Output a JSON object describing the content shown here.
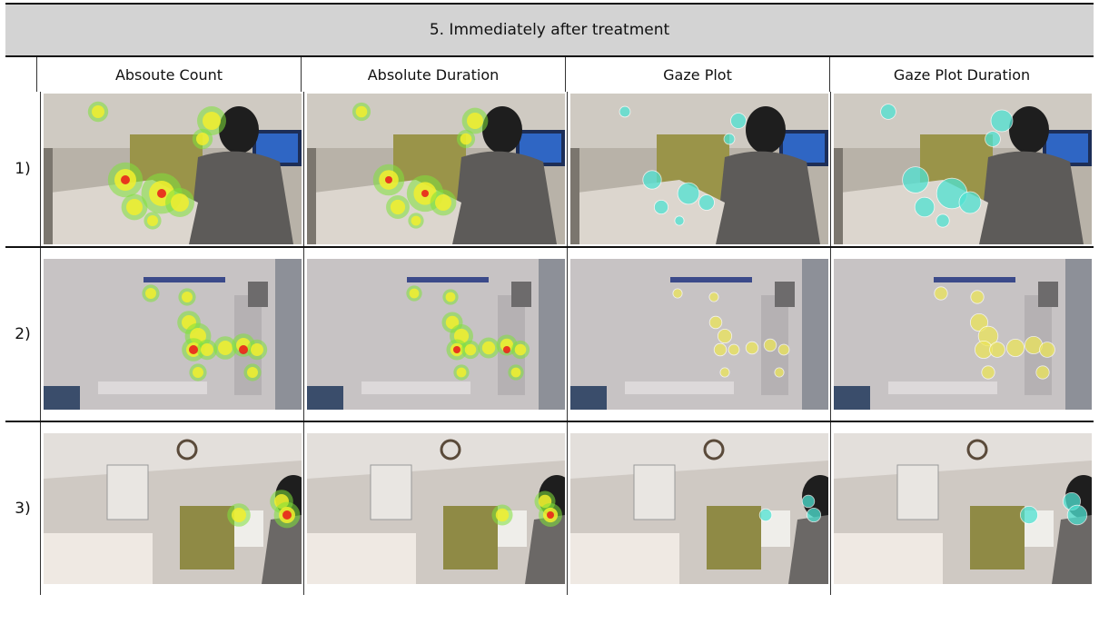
{
  "title": "5. Immediately after treatment",
  "columns": [
    "Absoute Count",
    "Absolute Duration",
    "Gaze Plot",
    "Gaze Plot Duration"
  ],
  "rows": [
    {
      "label": "1)",
      "scene": "office"
    },
    {
      "label": "2)",
      "scene": "wall"
    },
    {
      "label": "3)",
      "scene": "room"
    }
  ],
  "visual_types": [
    "heatmap-count",
    "heatmap-duration",
    "gaze-plot",
    "gaze-plot-duration"
  ],
  "colors": {
    "heat_green": "#7fe23a",
    "heat_yellow": "#f2ef2e",
    "heat_red": "#e8231c",
    "gaze_cyan": "#4fe3d3",
    "gaze_yellow": "#ece55a"
  }
}
